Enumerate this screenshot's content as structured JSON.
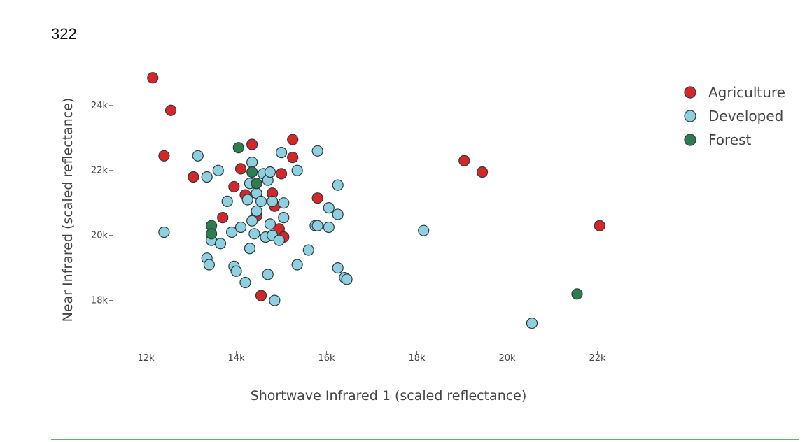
{
  "page": {
    "number": "322",
    "rule_color": "#5cb85c"
  },
  "chart_data": {
    "type": "scatter",
    "title": "",
    "xlabel": "Shortwave Infrared 1 (scaled reflectance)",
    "ylabel": "Near Infrared (scaled reflectance)",
    "xlim": [
      11200,
      23000
    ],
    "ylim": [
      16700,
      25200
    ],
    "x_ticks": [
      12000,
      14000,
      16000,
      18000,
      20000,
      22000
    ],
    "x_tick_labels": [
      "12k",
      "14k",
      "16k",
      "18k",
      "20k",
      "22k"
    ],
    "y_ticks": [
      18000,
      20000,
      22000,
      24000
    ],
    "y_tick_labels": [
      "18k",
      "20k",
      "22k",
      "24k"
    ],
    "grid": false,
    "legend_position": "top-right",
    "series": [
      {
        "name": "Agriculture",
        "color": "#d62728",
        "x": [
          12150,
          12550,
          12400,
          13050,
          13700,
          13950,
          14100,
          14200,
          14350,
          14450,
          14550,
          14800,
          14850,
          14950,
          15000,
          15050,
          15250,
          15250,
          15800,
          19050,
          19450,
          22050
        ],
        "y": [
          24850,
          23850,
          22450,
          21800,
          20550,
          21500,
          22050,
          21250,
          22800,
          20600,
          18150,
          21300,
          20900,
          20200,
          21900,
          19950,
          22950,
          22400,
          21150,
          22300,
          21950,
          20300
        ]
      },
      {
        "name": "Developed",
        "color": "#8fd0e0",
        "x": [
          12400,
          13150,
          13350,
          13350,
          13400,
          13450,
          13600,
          13650,
          13800,
          13900,
          13950,
          14000,
          14100,
          14200,
          14250,
          14300,
          14300,
          14350,
          14350,
          14400,
          14450,
          14450,
          14550,
          14600,
          14650,
          14700,
          14700,
          14750,
          14750,
          14800,
          14800,
          14850,
          14950,
          15000,
          15050,
          15050,
          15350,
          15350,
          15600,
          15750,
          15800,
          15800,
          16050,
          16050,
          16250,
          16250,
          16250,
          16400,
          16450,
          18150,
          20550
        ],
        "y": [
          20100,
          22450,
          21800,
          19300,
          19100,
          19850,
          22000,
          19750,
          21050,
          20100,
          19050,
          18900,
          20250,
          18550,
          21100,
          21600,
          19600,
          22250,
          20450,
          20050,
          21300,
          20750,
          21050,
          21900,
          19950,
          21700,
          18800,
          20350,
          21950,
          20000,
          21050,
          18000,
          19850,
          22550,
          21000,
          20550,
          22000,
          19100,
          19550,
          20300,
          22600,
          20300,
          20850,
          20250,
          20650,
          19000,
          21550,
          18700,
          18650,
          20150,
          17300
        ]
      },
      {
        "name": "Forest",
        "color": "#2e7d4f",
        "x": [
          13450,
          13450,
          14050,
          14350,
          14450,
          21550
        ],
        "y": [
          20300,
          20050,
          22700,
          21950,
          21600,
          18200
        ]
      }
    ]
  }
}
